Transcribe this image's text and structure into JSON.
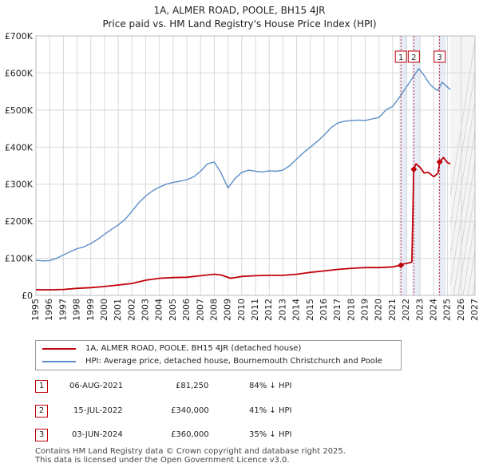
{
  "title_line1": "1A, ALMER ROAD, POOLE, BH15 4JR",
  "title_line2": "Price paid vs. HM Land Registry's House Price Index (HPI)",
  "colors": {
    "property": "#c0000a",
    "hpi": "#5b8fc9",
    "shade": "#dde6f3",
    "grid": "#d8d8d8"
  },
  "chart_data": {
    "type": "line",
    "title": "Price paid vs. HM Land Registry's House Price Index (HPI)",
    "xlabel": "",
    "ylabel": "",
    "xlim": [
      1995,
      2027
    ],
    "ylim": [
      0,
      700000
    ],
    "x_ticks": [
      1995,
      1996,
      1997,
      1998,
      1999,
      2000,
      2001,
      2002,
      2003,
      2004,
      2005,
      2006,
      2007,
      2008,
      2009,
      2010,
      2011,
      2012,
      2013,
      2014,
      2015,
      2016,
      2017,
      2018,
      2019,
      2020,
      2021,
      2022,
      2023,
      2024,
      2025,
      2026,
      2027
    ],
    "y_ticks": [
      {
        "value": 0,
        "label": "£0"
      },
      {
        "value": 100000,
        "label": "£100K"
      },
      {
        "value": 200000,
        "label": "£200K"
      },
      {
        "value": 300000,
        "label": "£300K"
      },
      {
        "value": 400000,
        "label": "£400K"
      },
      {
        "value": 500000,
        "label": "£500K"
      },
      {
        "value": 600000,
        "label": "£600K"
      },
      {
        "value": 700000,
        "label": "£700K"
      }
    ],
    "grid": true,
    "projection_start": 2025.2,
    "series": [
      {
        "name": "1A, ALMER ROAD, POOLE, BH15 4JR (detached house)",
        "x": [
          1995.0,
          1996.0,
          1997.0,
          1998.0,
          1999.0,
          2000.0,
          2001.0,
          2002.0,
          2003.0,
          2004.0,
          2005.0,
          2006.0,
          2007.0,
          2008.0,
          2008.5,
          2009.2,
          2010.0,
          2011.0,
          2012.0,
          2013.0,
          2014.0,
          2015.0,
          2016.0,
          2017.0,
          2018.0,
          2019.0,
          2020.0,
          2021.0,
          2021.6,
          2021.8,
          2022.0,
          2022.4,
          2022.54,
          2022.7,
          2023.0,
          2023.3,
          2023.6,
          2024.0,
          2024.3,
          2024.42,
          2024.7,
          2025.0,
          2025.2
        ],
        "values": [
          15000,
          15000,
          16000,
          19000,
          21000,
          24000,
          28000,
          32000,
          41000,
          46000,
          48000,
          49000,
          53000,
          57000,
          55000,
          46000,
          51000,
          53000,
          54000,
          54000,
          57000,
          62000,
          66000,
          70000,
          73000,
          75000,
          75000,
          77000,
          81250,
          85000,
          86000,
          90000,
          340000,
          355000,
          345000,
          330000,
          332000,
          320000,
          330000,
          360000,
          372000,
          358000,
          355000
        ]
      },
      {
        "name": "HPI: Average price, detached house, Bournemouth Christchurch and Poole",
        "x": [
          1995.0,
          1995.5,
          1996.0,
          1996.5,
          1997.0,
          1997.5,
          1998.0,
          1998.5,
          1999.0,
          1999.5,
          2000.0,
          2000.5,
          2001.0,
          2001.5,
          2002.0,
          2002.5,
          2003.0,
          2003.5,
          2004.0,
          2004.5,
          2005.0,
          2005.5,
          2006.0,
          2006.5,
          2007.0,
          2007.5,
          2008.0,
          2008.5,
          2009.0,
          2009.5,
          2010.0,
          2010.5,
          2011.0,
          2011.5,
          2012.0,
          2012.5,
          2013.0,
          2013.5,
          2014.0,
          2014.5,
          2015.0,
          2015.5,
          2016.0,
          2016.5,
          2017.0,
          2017.5,
          2018.0,
          2018.5,
          2019.0,
          2019.5,
          2020.0,
          2020.5,
          2021.0,
          2021.5,
          2022.0,
          2022.5,
          2022.9,
          2023.3,
          2023.7,
          2024.0,
          2024.3,
          2024.6,
          2024.9,
          2025.2
        ],
        "values": [
          95000,
          93000,
          94000,
          100000,
          109000,
          118000,
          126000,
          131000,
          140000,
          151000,
          165000,
          178000,
          190000,
          205000,
          227000,
          250000,
          268000,
          282000,
          292000,
          300000,
          305000,
          308000,
          312000,
          320000,
          335000,
          355000,
          360000,
          330000,
          290000,
          315000,
          332000,
          338000,
          335000,
          333000,
          336000,
          335000,
          338000,
          350000,
          368000,
          385000,
          400000,
          415000,
          432000,
          452000,
          465000,
          470000,
          472000,
          473000,
          472000,
          476000,
          480000,
          500000,
          510000,
          535000,
          562000,
          590000,
          612000,
          593000,
          570000,
          560000,
          552000,
          575000,
          565000,
          555000
        ]
      }
    ],
    "annotations": [
      {
        "label": "1",
        "x": 2021.6,
        "y": 81250
      },
      {
        "label": "2",
        "x": 2022.54,
        "y": 340000
      },
      {
        "label": "3",
        "x": 2024.42,
        "y": 360000
      }
    ]
  },
  "legend": {
    "property_label": "1A, ALMER ROAD, POOLE, BH15 4JR (detached house)",
    "hpi_label": "HPI: Average price, detached house, Bournemouth Christchurch and Poole"
  },
  "sales": [
    {
      "num": "1",
      "date": "06-AUG-2021",
      "price": "£81,250",
      "hpi": "84% ↓ HPI"
    },
    {
      "num": "2",
      "date": "15-JUL-2022",
      "price": "£340,000",
      "hpi": "41% ↓ HPI"
    },
    {
      "num": "3",
      "date": "03-JUN-2024",
      "price": "£360,000",
      "hpi": "35% ↓ HPI"
    }
  ],
  "footer_line1": "Contains HM Land Registry data © Crown copyright and database right 2025.",
  "footer_line2": "This data is licensed under the Open Government Licence v3.0."
}
